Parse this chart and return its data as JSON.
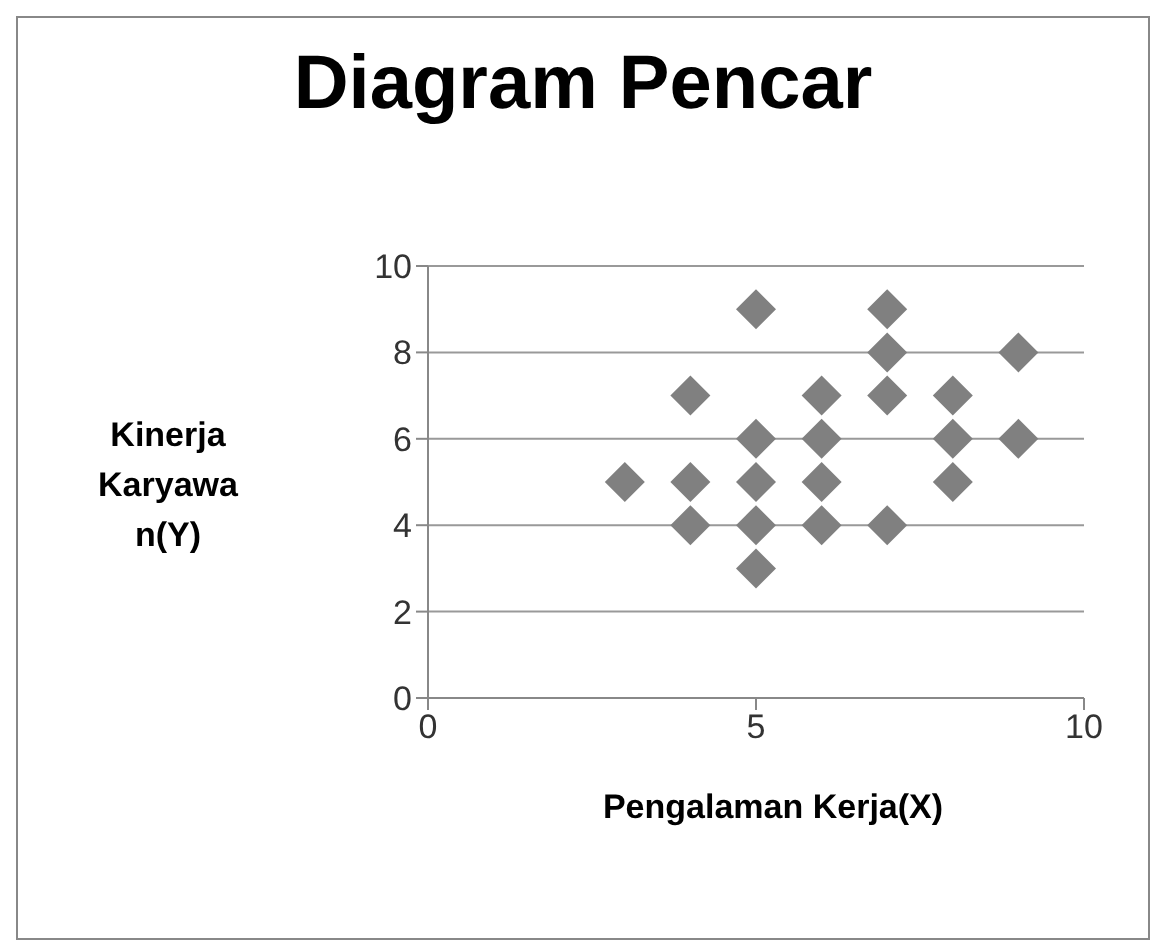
{
  "chart_data": {
    "type": "scatter",
    "title": "Diagram Pencar",
    "xlabel": "Pengalaman Kerja(X)",
    "ylabel": "Kinerja Karyawan(Y)",
    "x": [
      3,
      4,
      4,
      4,
      5,
      5,
      5,
      5,
      5,
      6,
      6,
      6,
      6,
      7,
      7,
      7,
      7,
      8,
      8,
      8,
      9,
      9
    ],
    "values": [
      5,
      7,
      5,
      4,
      9,
      6,
      5,
      4,
      3,
      7,
      6,
      5,
      4,
      9,
      8,
      7,
      4,
      7,
      6,
      5,
      8,
      6
    ],
    "color": "#808080",
    "marker": "diamond",
    "xlim": [
      0,
      10
    ],
    "xticks": [
      0,
      5,
      10
    ],
    "ylim": [
      0,
      10
    ],
    "yticks": [
      0,
      2,
      4,
      6,
      8,
      10
    ],
    "grid": "y",
    "legend": false
  }
}
